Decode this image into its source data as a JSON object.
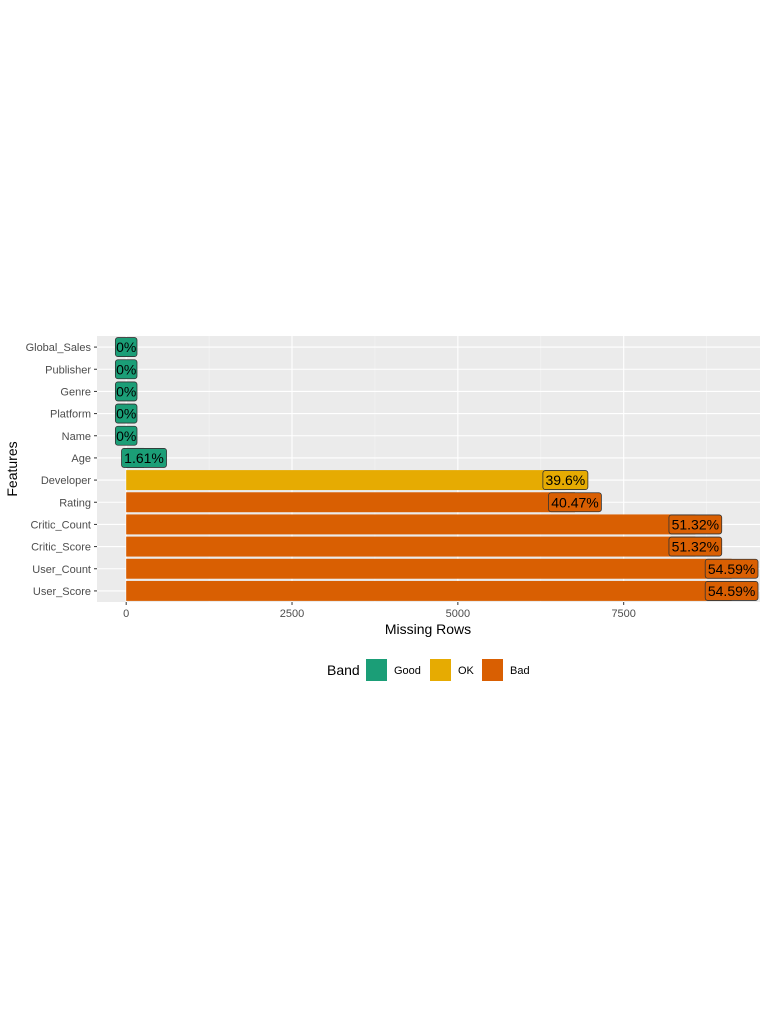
{
  "chart_data": {
    "type": "bar",
    "orientation": "horizontal",
    "title": "",
    "xlabel": "Missing Rows",
    "ylabel": "Features",
    "categories": [
      "Global_Sales",
      "Publisher",
      "Genre",
      "Platform",
      "Name",
      "Age",
      "Developer",
      "Rating",
      "Critic_Count",
      "Critic_Score",
      "User_Count",
      "User_Score"
    ],
    "values": [
      0,
      0,
      0,
      0,
      0,
      269,
      6621,
      6766,
      8580,
      8580,
      9127,
      9127
    ],
    "labels": [
      "0%",
      "0%",
      "0%",
      "0%",
      "0%",
      "1.61%",
      "39.6%",
      "40.47%",
      "51.32%",
      "51.32%",
      "54.59%",
      "54.59%"
    ],
    "bands": [
      "Good",
      "Good",
      "Good",
      "Good",
      "Good",
      "Good",
      "OK",
      "Bad",
      "Bad",
      "Bad",
      "Bad",
      "Bad"
    ],
    "xlim": [
      -440,
      9555
    ],
    "xticks": [
      0,
      2500,
      5000,
      7500
    ],
    "xtick_labels": [
      "0",
      "2500",
      "5000",
      "7500"
    ],
    "grid": true,
    "legend": {
      "title": "Band",
      "position": "bottom",
      "entries": [
        {
          "name": "Good",
          "color": "#1b9e77"
        },
        {
          "name": "OK",
          "color": "#e6ab02"
        },
        {
          "name": "Bad",
          "color": "#d95f02"
        }
      ]
    }
  }
}
